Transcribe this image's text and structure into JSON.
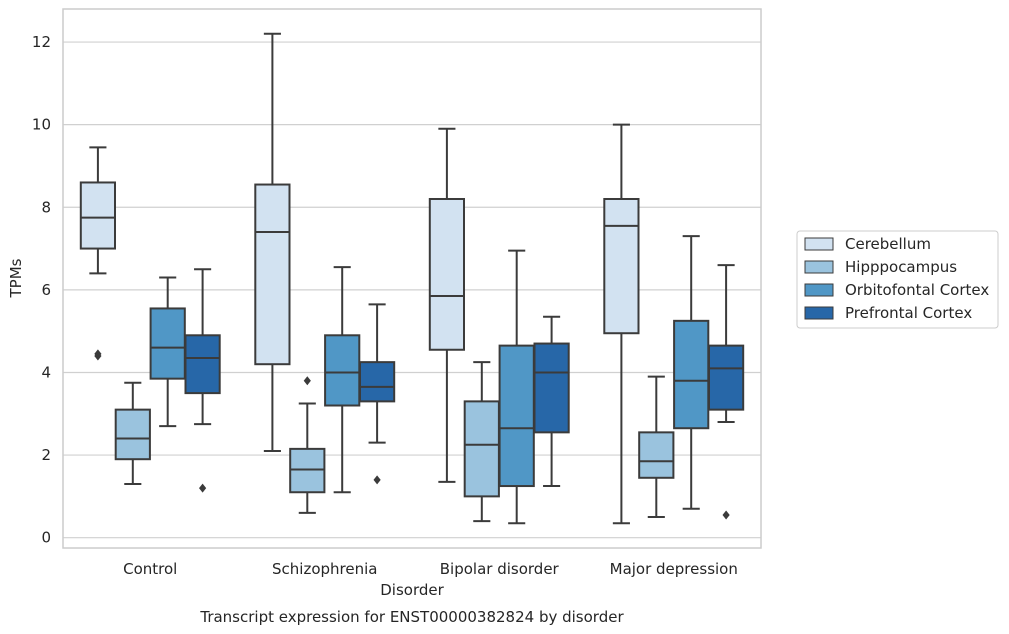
{
  "chart_data": {
    "type": "box",
    "title": "",
    "caption": "Transcript expression for ENST00000382824 by disorder",
    "xlabel": "Disorder",
    "ylabel": "TPMs",
    "ylim": [
      -0.25,
      12.8
    ],
    "yticks": [
      0,
      2,
      4,
      6,
      8,
      10,
      12
    ],
    "grid": "horizontal",
    "legend_position": "right",
    "categories": [
      "Control",
      "Schizophrenia",
      "Bipolar disorder",
      "Major depression"
    ],
    "series": [
      {
        "name": "Cerebellum",
        "color": "#d2e2f1",
        "boxes": [
          {
            "whislo": 6.4,
            "q1": 7.0,
            "med": 7.75,
            "q3": 8.6,
            "whishi": 9.45,
            "fliers": [
              4.4,
              4.45
            ]
          },
          {
            "whislo": 2.1,
            "q1": 4.2,
            "med": 7.4,
            "q3": 8.55,
            "whishi": 12.2,
            "fliers": []
          },
          {
            "whislo": 1.35,
            "q1": 4.55,
            "med": 5.85,
            "q3": 8.2,
            "whishi": 9.9,
            "fliers": []
          },
          {
            "whislo": 0.35,
            "q1": 4.95,
            "med": 7.55,
            "q3": 8.2,
            "whishi": 10.0,
            "fliers": []
          }
        ]
      },
      {
        "name": "Hipppocampus",
        "color": "#9ac3de",
        "boxes": [
          {
            "whislo": 1.3,
            "q1": 1.9,
            "med": 2.4,
            "q3": 3.1,
            "whishi": 3.75,
            "fliers": []
          },
          {
            "whislo": 0.6,
            "q1": 1.1,
            "med": 1.65,
            "q3": 2.15,
            "whishi": 3.25,
            "fliers": [
              3.8
            ]
          },
          {
            "whislo": 0.4,
            "q1": 1.0,
            "med": 2.25,
            "q3": 3.3,
            "whishi": 4.25,
            "fliers": []
          },
          {
            "whislo": 0.5,
            "q1": 1.45,
            "med": 1.85,
            "q3": 2.55,
            "whishi": 3.9,
            "fliers": []
          }
        ]
      },
      {
        "name": "Orbitofontal Cortex",
        "color": "#5097c6",
        "boxes": [
          {
            "whislo": 2.7,
            "q1": 3.85,
            "med": 4.6,
            "q3": 5.55,
            "whishi": 6.3,
            "fliers": []
          },
          {
            "whislo": 1.1,
            "q1": 3.2,
            "med": 4.0,
            "q3": 4.9,
            "whishi": 6.55,
            "fliers": []
          },
          {
            "whislo": 0.35,
            "q1": 1.25,
            "med": 2.65,
            "q3": 4.65,
            "whishi": 6.95,
            "fliers": []
          },
          {
            "whislo": 0.7,
            "q1": 2.65,
            "med": 3.8,
            "q3": 5.25,
            "whishi": 7.3,
            "fliers": []
          }
        ]
      },
      {
        "name": "Prefrontal Cortex",
        "color": "#2767a8",
        "boxes": [
          {
            "whislo": 2.75,
            "q1": 3.5,
            "med": 4.35,
            "q3": 4.9,
            "whishi": 6.5,
            "fliers": [
              1.2
            ]
          },
          {
            "whislo": 2.3,
            "q1": 3.3,
            "med": 3.65,
            "q3": 4.25,
            "whishi": 5.65,
            "fliers": [
              1.4
            ]
          },
          {
            "whislo": 1.25,
            "q1": 2.55,
            "med": 4.0,
            "q3": 4.7,
            "whishi": 5.35,
            "fliers": []
          },
          {
            "whislo": 2.8,
            "q1": 3.1,
            "med": 4.1,
            "q3": 4.65,
            "whishi": 6.6,
            "fliers": [
              0.55
            ]
          }
        ]
      }
    ]
  }
}
